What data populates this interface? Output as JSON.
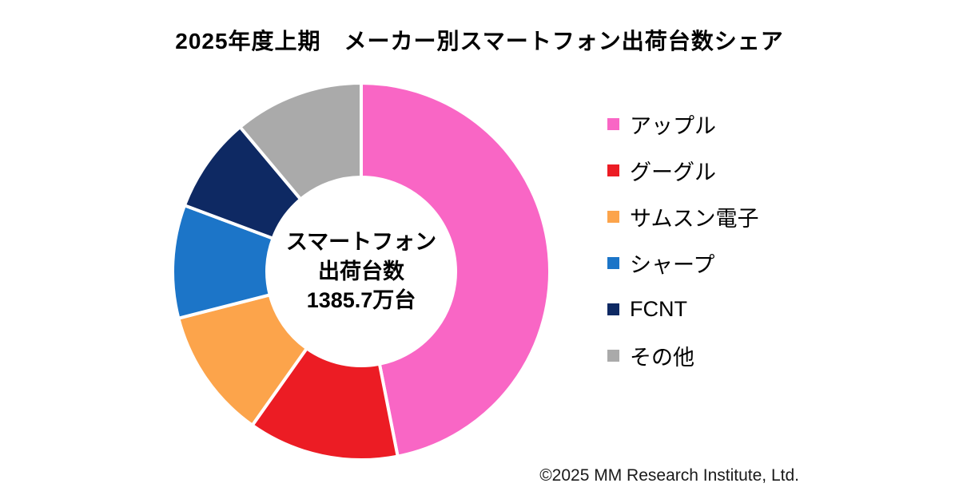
{
  "title": "2025年度上期　メーカー別スマートフォン出荷台数シェア",
  "center_label": {
    "line1": "スマートフォン",
    "line2": "出荷台数",
    "line3": "1385.7万台"
  },
  "footer": "©2025 MM Research Institute, Ltd.",
  "chart_data": {
    "type": "pie",
    "donut": true,
    "title": "2025年度上期　メーカー別スマートフォン出荷台数シェア",
    "center_text": "スマートフォン出荷台数 1385.7万台",
    "total": "1385.7万台",
    "start_angle_deg": 0,
    "direction": "clockwise",
    "legend_position": "right",
    "unit": "percent (estimated from arc angles)",
    "series": [
      {
        "name": "アップル",
        "value": 46.9,
        "color": "#F966C5"
      },
      {
        "name": "グーグル",
        "value": 12.9,
        "color": "#EC1C24"
      },
      {
        "name": "サムスン電子",
        "value": 11.2,
        "color": "#FCA44B"
      },
      {
        "name": "シャープ",
        "value": 9.7,
        "color": "#1C75C8"
      },
      {
        "name": "FCNT",
        "value": 8.2,
        "color": "#0E2963"
      },
      {
        "name": "その他",
        "value": 11.1,
        "color": "#AAAAAA"
      }
    ]
  }
}
